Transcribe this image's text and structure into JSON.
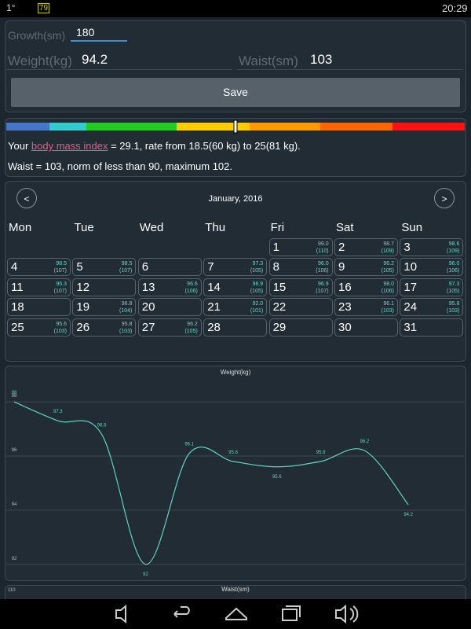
{
  "status_bar": {
    "left": "1°",
    "battery": "79",
    "time": "20:29"
  },
  "form": {
    "growth_label": "Growth(sm)",
    "growth": "180",
    "weight_label": "Weight(kg)",
    "weight": "94.2",
    "waist_label": "Waist(sm)",
    "waist": "103",
    "save": "Save"
  },
  "bmi": {
    "prefix": "Your ",
    "link": "body mass index",
    "suffix": " = 29.1, rate from 18.5(60 kg) to 25(81 kg).",
    "waist_line": "Waist = 103, norm of less than 90, maximum 102."
  },
  "calendar": {
    "prev": "<",
    "title": "January, 2016",
    "next": ">",
    "weekdays": [
      "Mon",
      "Tue",
      "Wed",
      "Thu",
      "Fri",
      "Sat",
      "Sun"
    ],
    "days": [
      {
        "day": "1",
        "weight": "99.0",
        "waist": "(110)"
      },
      {
        "day": "2",
        "weight": "98.7",
        "waist": "(109)"
      },
      {
        "day": "3",
        "weight": "98.6",
        "waist": "(109)"
      },
      {
        "day": "4",
        "weight": "98.5",
        "waist": "(107)"
      },
      {
        "day": "5",
        "weight": "98.5",
        "waist": "(107)"
      },
      {
        "day": "6"
      },
      {
        "day": "7",
        "weight": "97.3",
        "waist": "(105)"
      },
      {
        "day": "8",
        "weight": "96.0",
        "waist": "(106)"
      },
      {
        "day": "9",
        "weight": "96.2",
        "waist": "(105)"
      },
      {
        "day": "10",
        "weight": "96.0",
        "waist": "(106)"
      },
      {
        "day": "11",
        "weight": "96.3",
        "waist": "(107)"
      },
      {
        "day": "12"
      },
      {
        "day": "13",
        "weight": "96.6",
        "waist": "(106)"
      },
      {
        "day": "14",
        "weight": "96.9",
        "waist": "(105)"
      },
      {
        "day": "15",
        "weight": "96.9",
        "waist": "(107)"
      },
      {
        "day": "16",
        "weight": "98.0",
        "waist": "(106)"
      },
      {
        "day": "17",
        "weight": "97.3",
        "waist": "(105)"
      },
      {
        "day": "18"
      },
      {
        "day": "19",
        "weight": "96.8",
        "waist": "(104)"
      },
      {
        "day": "20"
      },
      {
        "day": "21",
        "weight": "92.0",
        "waist": "(101)"
      },
      {
        "day": "22"
      },
      {
        "day": "23",
        "weight": "96.1",
        "waist": "(103)"
      },
      {
        "day": "24",
        "weight": "95.8",
        "waist": "(103)"
      },
      {
        "day": "25",
        "weight": "95.6",
        "waist": "(103)"
      },
      {
        "day": "26",
        "weight": "95.8",
        "waist": "(103)"
      },
      {
        "day": "27",
        "weight": "96.2",
        "waist": "(105)"
      },
      {
        "day": "28"
      },
      {
        "day": "29"
      },
      {
        "day": "30"
      },
      {
        "day": "31"
      }
    ]
  },
  "chart_data": [
    {
      "type": "line",
      "title": "Weight(kg)",
      "color": "#5fd3c3",
      "values": [
        98,
        97.3,
        96.8,
        92,
        96.1,
        95.8,
        95.6,
        95.8,
        96.2,
        94.2
      ],
      "ylim": [
        91.5,
        98.7
      ],
      "yticks": [
        92,
        94,
        96,
        98
      ],
      "grid": true
    },
    {
      "type": "line",
      "title": "Waist(sm)",
      "yticks": [
        110
      ]
    }
  ]
}
